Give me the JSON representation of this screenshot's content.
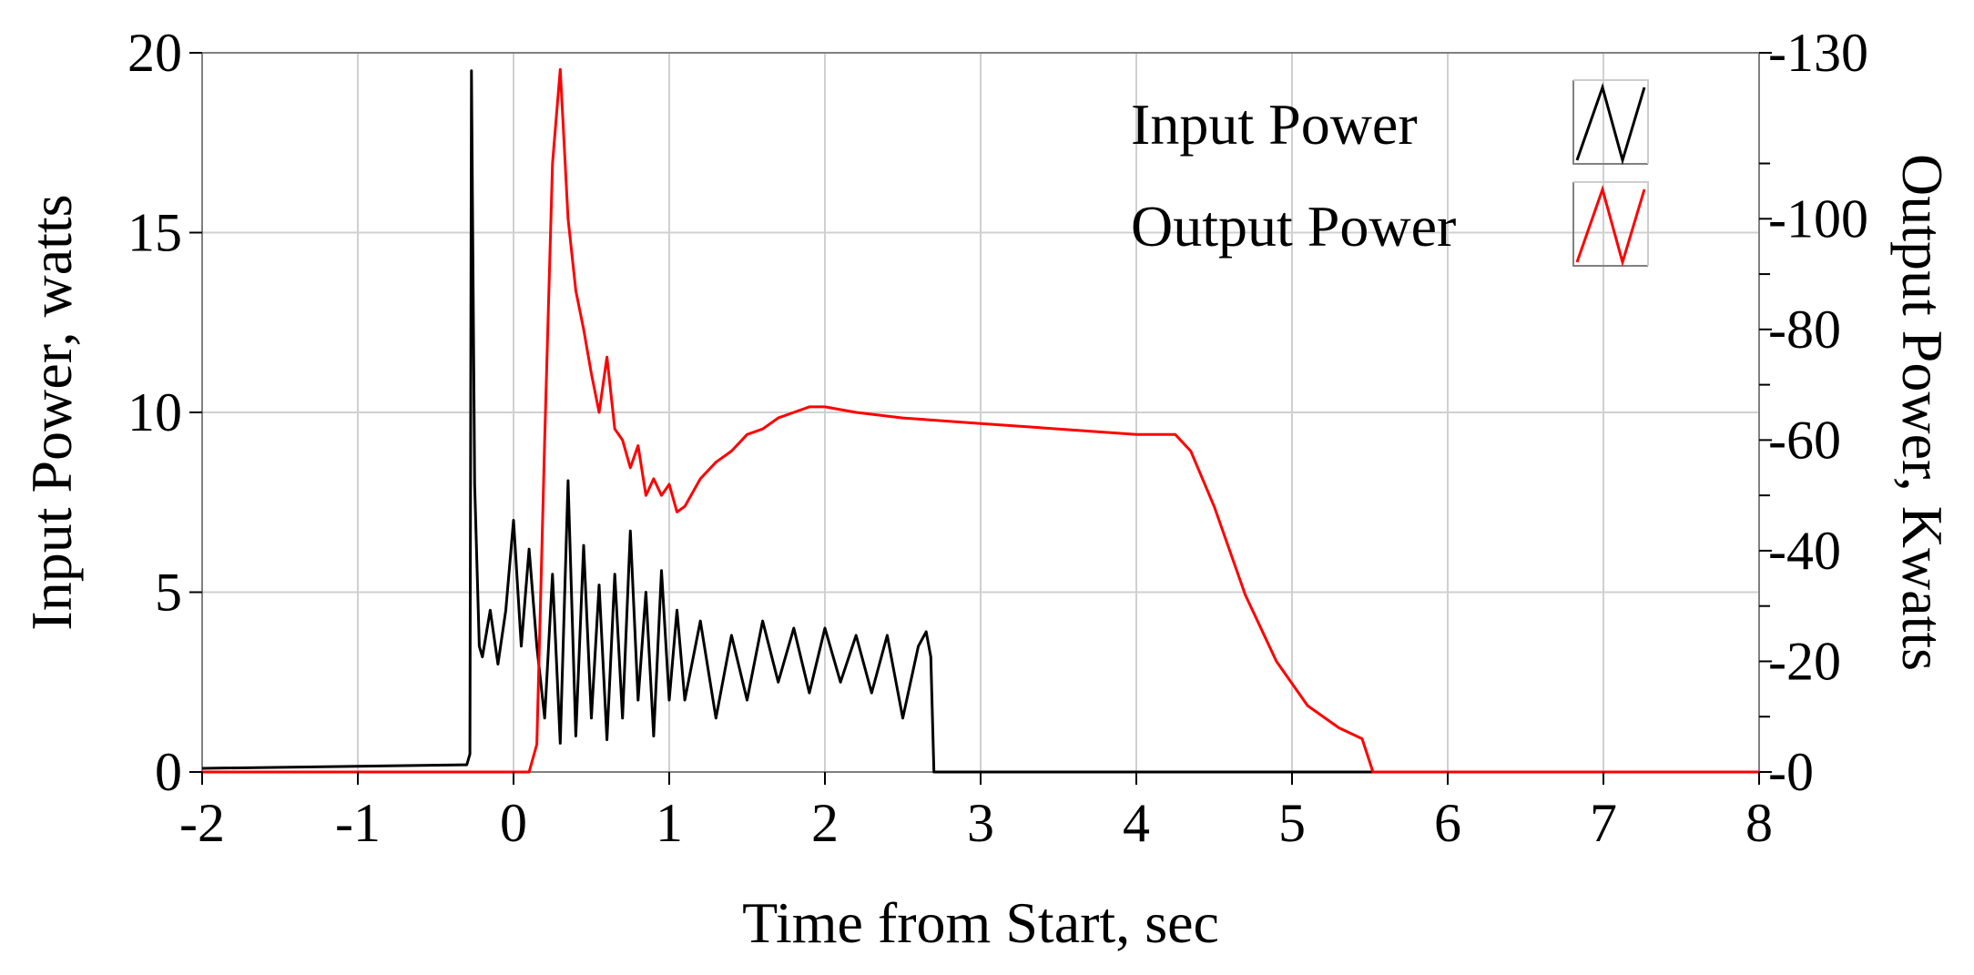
{
  "chart_data": {
    "type": "line",
    "title": "",
    "xlabel": "Time from  Start, sec",
    "ylabel_left": "Input Power, watts",
    "ylabel_right": "Output Power, Kwatts",
    "xlim": [
      -2,
      8
    ],
    "ylim_left": [
      0,
      20
    ],
    "ylim_right": [
      0,
      130
    ],
    "x_ticks": [
      "-2",
      "-1",
      "0",
      "1",
      "2",
      "3",
      "4",
      "5",
      "6",
      "7",
      "8"
    ],
    "y_left_ticks": [
      "0",
      "5",
      "10",
      "15",
      "20"
    ],
    "y_right_ticks": [
      "0",
      "20",
      "40",
      "60",
      "80",
      "100",
      "130"
    ],
    "grid": true,
    "legend_position": "top-right",
    "legend": [
      "Input Power",
      "Output Power"
    ],
    "series": [
      {
        "name": "Input Power",
        "axis": "left",
        "color": "#000000",
        "x": [
          -2,
          -0.3,
          -0.28,
          -0.27,
          -0.25,
          -0.22,
          -0.2,
          -0.15,
          -0.1,
          -0.05,
          0.0,
          0.05,
          0.1,
          0.15,
          0.2,
          0.25,
          0.3,
          0.35,
          0.4,
          0.45,
          0.5,
          0.55,
          0.6,
          0.65,
          0.7,
          0.75,
          0.8,
          0.85,
          0.9,
          0.95,
          1.0,
          1.05,
          1.1,
          1.2,
          1.3,
          1.4,
          1.5,
          1.6,
          1.7,
          1.8,
          1.9,
          2.0,
          2.1,
          2.2,
          2.3,
          2.4,
          2.5,
          2.6,
          2.65,
          2.68,
          2.7,
          8
        ],
        "y": [
          0.1,
          0.2,
          0.5,
          19.5,
          8.0,
          3.5,
          3.2,
          4.5,
          3.0,
          4.5,
          7.0,
          3.5,
          6.2,
          3.5,
          1.5,
          5.5,
          0.8,
          8.1,
          1.0,
          6.3,
          1.5,
          5.2,
          0.9,
          5.5,
          1.5,
          6.7,
          2.0,
          5.0,
          1.0,
          5.6,
          2.0,
          4.5,
          2.0,
          4.2,
          1.5,
          3.8,
          2.0,
          4.2,
          2.5,
          4.0,
          2.2,
          4.0,
          2.5,
          3.8,
          2.2,
          3.8,
          1.5,
          3.5,
          3.9,
          3.2,
          0.0,
          0.0
        ]
      },
      {
        "name": "Output Power",
        "axis": "right",
        "color": "#ff0000",
        "x": [
          -2,
          0.1,
          0.15,
          0.2,
          0.25,
          0.3,
          0.35,
          0.4,
          0.45,
          0.5,
          0.55,
          0.6,
          0.65,
          0.7,
          0.75,
          0.8,
          0.85,
          0.9,
          0.95,
          1.0,
          1.05,
          1.1,
          1.2,
          1.3,
          1.4,
          1.5,
          1.6,
          1.7,
          1.8,
          1.9,
          2.0,
          2.2,
          2.5,
          3.0,
          3.5,
          4.0,
          4.25,
          4.35,
          4.5,
          4.7,
          4.9,
          5.1,
          5.3,
          5.45,
          5.52,
          8
        ],
        "y": [
          0,
          0,
          5,
          60,
          110,
          127,
          100,
          87,
          80,
          72,
          65,
          75,
          62,
          60,
          55,
          59,
          50,
          53,
          50,
          52,
          47,
          48,
          53,
          56,
          58,
          61,
          62,
          64,
          65,
          66,
          66,
          65,
          64,
          63,
          62,
          61,
          61,
          58,
          48,
          32,
          20,
          12,
          8,
          6,
          0,
          0
        ]
      }
    ]
  }
}
